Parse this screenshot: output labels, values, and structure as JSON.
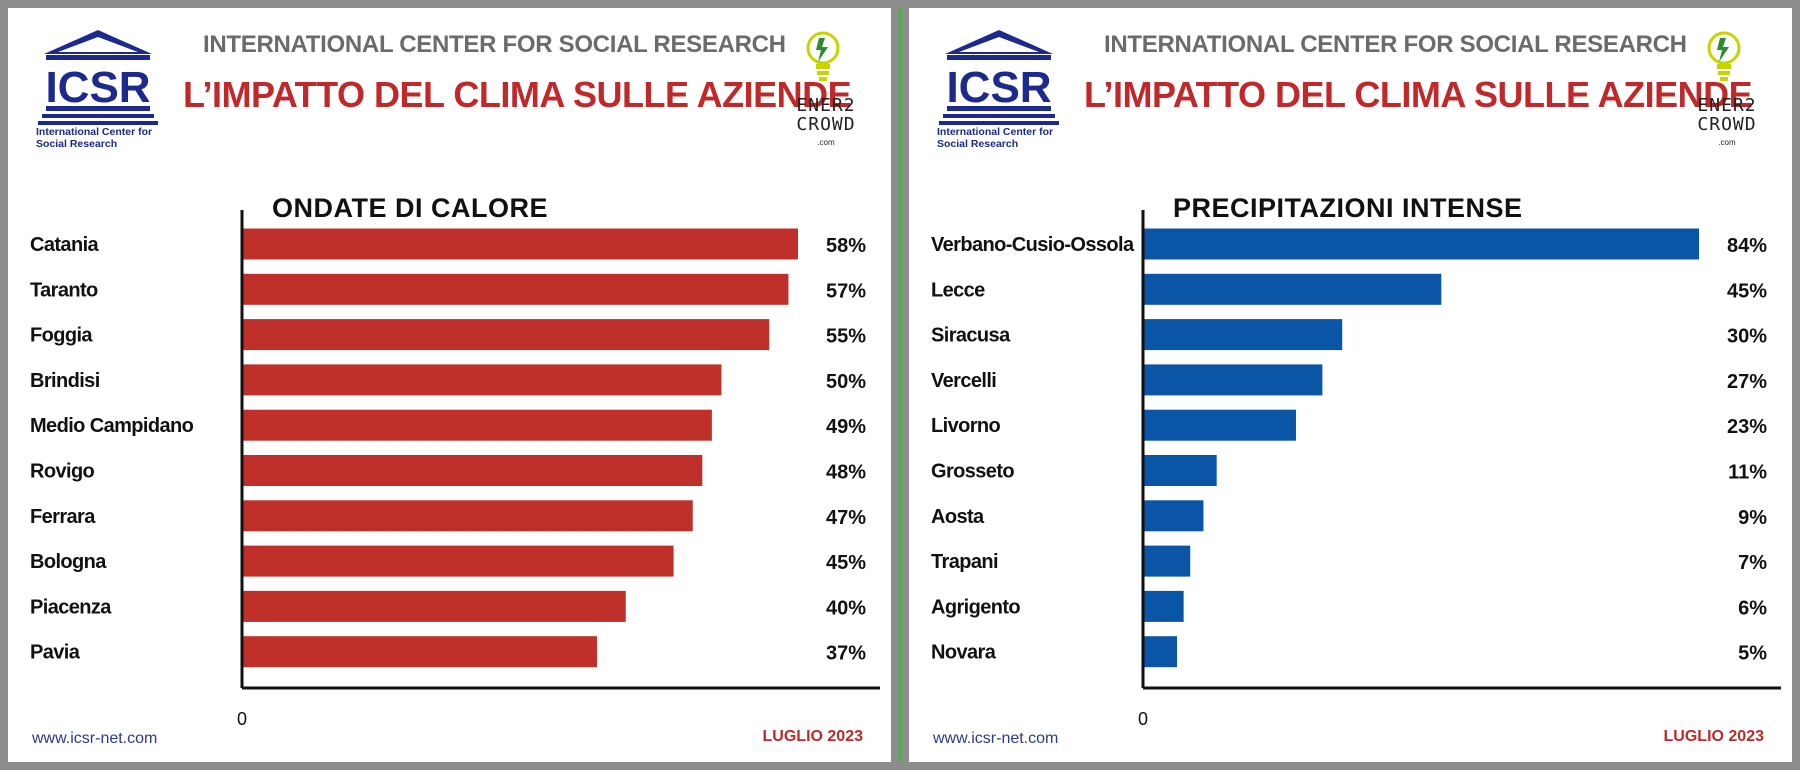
{
  "panels": [
    {
      "logo_text": "ICSR",
      "logo_sub": "International Center for Social Research",
      "org": "INTERNATIONAL CENTER FOR SOCIAL RESEARCH",
      "headline": "L’IMPATTO DEL CLIMA SULLE AZIENDE",
      "partner_text": "ENER2 CROWD",
      "partner_dotcom": ".com",
      "footer_url": "www.icsr-net.com",
      "footer_date": "LUGLIO 2023",
      "chart_data": {
        "type": "bar",
        "orientation": "horizontal",
        "title": "ONDATE DI CALORE",
        "categories": [
          "Catania",
          "Taranto",
          "Foggia",
          "Brindisi",
          "Medio Campidano",
          "Rovigo",
          "Ferrara",
          "Bologna",
          "Piacenza",
          "Pavia"
        ],
        "values": [
          58,
          57,
          55,
          50,
          49,
          48,
          47,
          45,
          40,
          37
        ],
        "value_labels": [
          "58%",
          "57%",
          "55%",
          "50%",
          "49%",
          "48%",
          "47%",
          "45%",
          "40%",
          "37%"
        ],
        "x_tick": "0",
        "xlim": [
          0,
          58
        ],
        "color": "#c0302a"
      }
    },
    {
      "logo_text": "ICSR",
      "logo_sub": "International Center for Social Research",
      "org": "INTERNATIONAL CENTER FOR SOCIAL RESEARCH",
      "headline": "L’IMPATTO DEL CLIMA SULLE AZIENDE",
      "partner_text": "ENER2 CROWD",
      "partner_dotcom": ".com",
      "footer_url": "www.icsr-net.com",
      "footer_date": "LUGLIO 2023",
      "chart_data": {
        "type": "bar",
        "orientation": "horizontal",
        "title": "PRECIPITAZIONI INTENSE",
        "categories": [
          "Verbano-Cusio-Ossola",
          "Lecce",
          "Siracusa",
          "Vercelli",
          "Livorno",
          "Grosseto",
          "Aosta",
          "Trapani",
          "Agrigento",
          "Novara"
        ],
        "values": [
          84,
          45,
          30,
          27,
          23,
          11,
          9,
          7,
          6,
          5
        ],
        "value_labels": [
          "84%",
          "45%",
          "30%",
          "27%",
          "23%",
          "11%",
          "9%",
          "7%",
          "6%",
          "5%"
        ],
        "x_tick": "0",
        "xlim": [
          0,
          84
        ],
        "color": "#0a55a6"
      }
    }
  ]
}
